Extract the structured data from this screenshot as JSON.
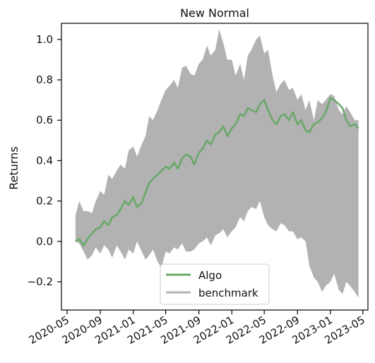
{
  "chart_data": {
    "type": "line",
    "title": "New Normal",
    "xlabel": "",
    "ylabel": "Returns",
    "x_ticks": [
      "2020-05",
      "2020-09",
      "2021-01",
      "2021-05",
      "2021-09",
      "2022-01",
      "2022-05",
      "2022-09",
      "2023-01",
      "2023-05"
    ],
    "xlim": [
      "2020-04-10",
      "2023-05-20"
    ],
    "y_ticks": [
      1.0,
      0.8,
      0.6,
      0.4,
      0.2,
      0.0,
      -0.2
    ],
    "y_tick_labels": [
      "1.0",
      "0.8",
      "0.6",
      "0.4",
      "0.2",
      "0.0",
      "−0.2"
    ],
    "ylim": [
      -0.34,
      1.08
    ],
    "grid": false,
    "legend_position": "lower-center",
    "series": [
      {
        "name": "Algo",
        "color": "#6aa86a",
        "style": "line",
        "x": [
          "2020-06-01",
          "2020-06-15",
          "2020-07-01",
          "2020-07-15",
          "2020-08-01",
          "2020-08-15",
          "2020-09-01",
          "2020-09-15",
          "2020-10-01",
          "2020-10-15",
          "2020-11-01",
          "2020-11-15",
          "2020-12-01",
          "2020-12-15",
          "2021-01-01",
          "2021-01-15",
          "2021-02-01",
          "2021-02-15",
          "2021-03-01",
          "2021-03-15",
          "2021-04-01",
          "2021-04-15",
          "2021-05-01",
          "2021-05-15",
          "2021-06-01",
          "2021-06-15",
          "2021-07-01",
          "2021-07-15",
          "2021-08-01",
          "2021-08-15",
          "2021-09-01",
          "2021-09-15",
          "2021-10-01",
          "2021-10-15",
          "2021-11-01",
          "2021-11-15",
          "2021-12-01",
          "2021-12-15",
          "2022-01-01",
          "2022-01-15",
          "2022-02-01",
          "2022-02-15",
          "2022-03-01",
          "2022-03-15",
          "2022-04-01",
          "2022-04-15",
          "2022-05-01",
          "2022-05-15",
          "2022-06-01",
          "2022-06-15",
          "2022-07-01",
          "2022-07-15",
          "2022-08-01",
          "2022-08-15",
          "2022-09-01",
          "2022-09-15",
          "2022-10-01",
          "2022-10-15",
          "2022-11-01",
          "2022-11-15",
          "2022-12-01",
          "2022-12-15",
          "2023-01-01",
          "2023-01-15",
          "2023-02-01",
          "2023-02-15",
          "2023-03-01",
          "2023-03-15",
          "2023-04-01",
          "2023-04-15"
        ],
        "values": [
          0.0,
          0.01,
          -0.02,
          0.01,
          0.04,
          0.06,
          0.07,
          0.1,
          0.08,
          0.12,
          0.13,
          0.16,
          0.2,
          0.18,
          0.22,
          0.17,
          0.19,
          0.24,
          0.29,
          0.31,
          0.33,
          0.35,
          0.37,
          0.36,
          0.39,
          0.36,
          0.41,
          0.43,
          0.42,
          0.38,
          0.44,
          0.46,
          0.5,
          0.48,
          0.53,
          0.54,
          0.57,
          0.52,
          0.56,
          0.58,
          0.63,
          0.62,
          0.66,
          0.65,
          0.64,
          0.68,
          0.7,
          0.65,
          0.6,
          0.58,
          0.62,
          0.63,
          0.6,
          0.64,
          0.58,
          0.6,
          0.55,
          0.54,
          0.58,
          0.59,
          0.61,
          0.64,
          0.71,
          0.7,
          0.68,
          0.66,
          0.6,
          0.57,
          0.58,
          0.56
        ]
      },
      {
        "name": "benchmark",
        "color": "#b2b2b2",
        "style": "band",
        "x": [
          "2020-06-01",
          "2020-06-15",
          "2020-07-01",
          "2020-07-15",
          "2020-08-01",
          "2020-08-15",
          "2020-09-01",
          "2020-09-15",
          "2020-10-01",
          "2020-10-15",
          "2020-11-01",
          "2020-11-15",
          "2020-12-01",
          "2020-12-15",
          "2021-01-01",
          "2021-01-15",
          "2021-02-01",
          "2021-02-15",
          "2021-03-01",
          "2021-03-15",
          "2021-04-01",
          "2021-04-15",
          "2021-05-01",
          "2021-05-15",
          "2021-06-01",
          "2021-06-15",
          "2021-07-01",
          "2021-07-15",
          "2021-08-01",
          "2021-08-15",
          "2021-09-01",
          "2021-09-15",
          "2021-10-01",
          "2021-10-15",
          "2021-11-01",
          "2021-11-15",
          "2021-12-01",
          "2021-12-15",
          "2022-01-01",
          "2022-01-15",
          "2022-02-01",
          "2022-02-15",
          "2022-03-01",
          "2022-03-15",
          "2022-04-01",
          "2022-04-15",
          "2022-05-01",
          "2022-05-15",
          "2022-06-01",
          "2022-06-15",
          "2022-07-01",
          "2022-07-15",
          "2022-08-01",
          "2022-08-15",
          "2022-09-01",
          "2022-09-15",
          "2022-10-01",
          "2022-10-15",
          "2022-11-01",
          "2022-11-15",
          "2022-12-01",
          "2022-12-15",
          "2023-01-01",
          "2023-01-15",
          "2023-02-01",
          "2023-02-15",
          "2023-03-01",
          "2023-03-15",
          "2023-04-01",
          "2023-04-15"
        ],
        "upper": [
          0.13,
          0.2,
          0.15,
          0.15,
          0.14,
          0.2,
          0.25,
          0.23,
          0.33,
          0.31,
          0.35,
          0.38,
          0.36,
          0.45,
          0.47,
          0.42,
          0.48,
          0.52,
          0.62,
          0.6,
          0.65,
          0.7,
          0.75,
          0.77,
          0.8,
          0.76,
          0.86,
          0.87,
          0.83,
          0.82,
          0.88,
          0.9,
          0.97,
          0.92,
          0.95,
          1.05,
          0.98,
          0.9,
          0.9,
          0.82,
          0.88,
          0.8,
          0.92,
          0.95,
          1.0,
          1.02,
          0.93,
          0.95,
          0.82,
          0.74,
          0.78,
          0.8,
          0.75,
          0.76,
          0.7,
          0.73,
          0.65,
          0.7,
          0.6,
          0.7,
          0.68,
          0.7,
          0.73,
          0.72,
          0.65,
          0.63,
          0.67,
          0.64,
          0.6,
          0.6
        ],
        "lower": [
          0.0,
          -0.01,
          -0.05,
          -0.09,
          -0.07,
          -0.03,
          -0.06,
          -0.02,
          -0.04,
          -0.08,
          -0.02,
          -0.05,
          -0.09,
          -0.04,
          -0.06,
          0.0,
          -0.05,
          -0.09,
          -0.07,
          -0.04,
          -0.1,
          -0.13,
          -0.05,
          -0.06,
          -0.03,
          -0.04,
          -0.01,
          -0.05,
          -0.05,
          -0.04,
          -0.01,
          0.0,
          0.02,
          -0.02,
          0.03,
          0.04,
          0.06,
          0.02,
          0.05,
          0.07,
          0.12,
          0.1,
          0.15,
          0.17,
          0.16,
          0.2,
          0.12,
          0.08,
          0.06,
          0.05,
          0.09,
          0.08,
          0.05,
          0.05,
          0.01,
          0.02,
          0.0,
          -0.12,
          -0.18,
          -0.2,
          -0.25,
          -0.22,
          -0.2,
          -0.16,
          -0.24,
          -0.26,
          -0.2,
          -0.22,
          -0.25,
          -0.28
        ]
      }
    ]
  }
}
